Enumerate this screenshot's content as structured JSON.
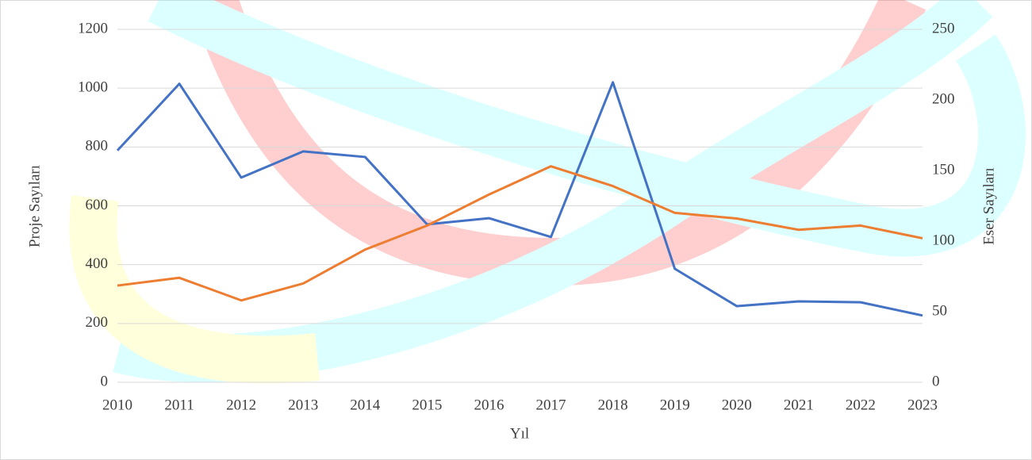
{
  "chart_data": {
    "type": "line",
    "x_label": "Yıl",
    "y_label": "Proje Sayıları",
    "y2_label": "Eser Sayıları",
    "categories": [
      "2010",
      "2011",
      "2012",
      "2013",
      "2014",
      "2015",
      "2016",
      "2017",
      "2018",
      "2019",
      "2020",
      "2021",
      "2022",
      "2023"
    ],
    "series": [
      {
        "color": "#4472c4",
        "values": [
          788,
          1015,
          696,
          785,
          766,
          537,
          558,
          494,
          1020,
          386,
          259,
          275,
          272,
          227
        ]
      },
      {
        "color": "#ed7d31",
        "axis": "y2",
        "values": [
          68.5,
          74,
          58,
          70,
          94,
          111,
          133,
          153,
          139,
          120,
          116,
          108,
          111,
          102
        ]
      }
    ],
    "ylim": [
      0,
      1200
    ],
    "yticks": [
      0,
      200,
      400,
      600,
      800,
      1000,
      1200
    ],
    "y2lim": [
      0,
      250
    ],
    "y2ticks": [
      0,
      50,
      100,
      150,
      200,
      250
    ],
    "grid": true
  }
}
